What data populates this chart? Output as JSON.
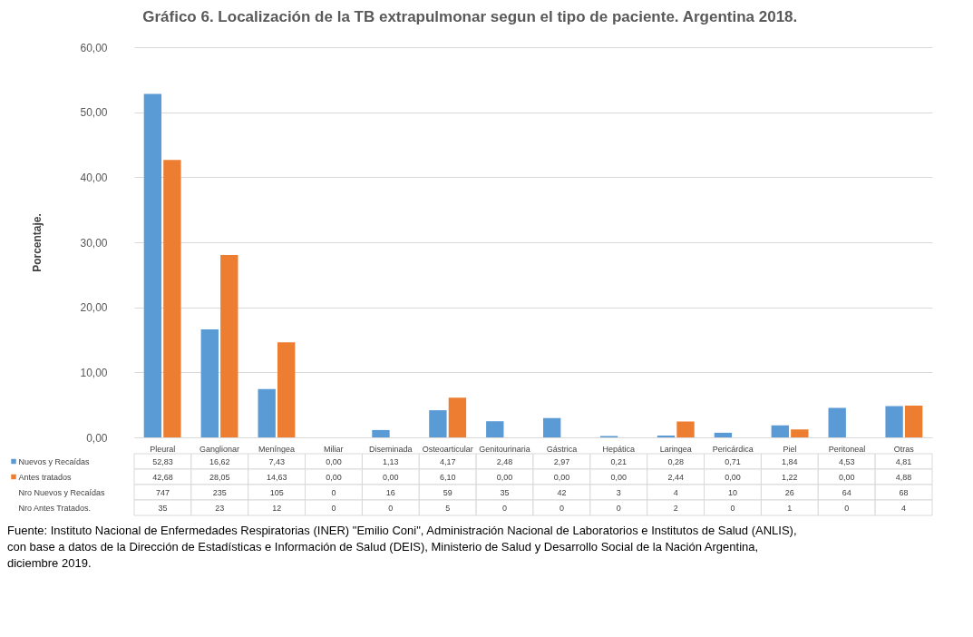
{
  "chart_data": {
    "type": "bar",
    "title": "Gráfico 6. Localización de la TB extrapulmonar segun el tipo de paciente. Argentina 2018.",
    "ylabel": "Porcentaje.",
    "categories": [
      "Pleural",
      "Ganglionar",
      "Meníngea",
      "Miliar",
      "Diseminada",
      "Osteoarticular",
      "Genitourinaria",
      "Gástrica",
      "Hepática",
      "Laringea",
      "Pericárdica",
      "Piel",
      "Peritoneal",
      "Otras"
    ],
    "series": [
      {
        "name": "Nuevos y Recaídas",
        "color": "#5b9bd5",
        "values": [
          52.83,
          16.62,
          7.43,
          0.0,
          1.13,
          4.17,
          2.48,
          2.97,
          0.21,
          0.28,
          0.71,
          1.84,
          4.53,
          4.81
        ],
        "value_labels": [
          "52,83",
          "16,62",
          "7,43",
          "0,00",
          "1,13",
          "4,17",
          "2,48",
          "2,97",
          "0,21",
          "0,28",
          "0,71",
          "1,84",
          "4,53",
          "4,81"
        ]
      },
      {
        "name": "Antes tratados",
        "color": "#ed7d31",
        "values": [
          42.68,
          28.05,
          14.63,
          0.0,
          0.0,
          6.1,
          0.0,
          0.0,
          0.0,
          2.44,
          0.0,
          1.22,
          0.0,
          4.88
        ],
        "value_labels": [
          "42,68",
          "28,05",
          "14,63",
          "0,00",
          "0,00",
          "6,10",
          "0,00",
          "0,00",
          "0,00",
          "2,44",
          "0,00",
          "1,22",
          "0,00",
          "4,88"
        ]
      }
    ],
    "ylim": [
      0,
      60
    ],
    "yticks": [
      {
        "value": 0,
        "label": "0,00"
      },
      {
        "value": 10,
        "label": "10,00"
      },
      {
        "value": 20,
        "label": "20,00"
      },
      {
        "value": 30,
        "label": "30,00"
      },
      {
        "value": 40,
        "label": "40,00"
      },
      {
        "value": 50,
        "label": "50,00"
      },
      {
        "value": 60,
        "label": "60,00"
      }
    ],
    "grid": "y",
    "legend": "bottom left",
    "annotations": [
      "Nro Nuevos y Recaídas",
      "747",
      "235",
      "105",
      "0",
      "16",
      "59",
      "35",
      "42",
      "3",
      "4",
      "10",
      "26",
      "64",
      "68",
      "Nro Antes Tratados.",
      "35",
      "23",
      "12",
      "0",
      "0",
      "5",
      "0",
      "0",
      "0",
      "2",
      "0",
      "1",
      "0",
      "4",
      "Fuente: Instituto Nacional de Enfermedades Respiratorias (INER) \"Emilio Coni\", Administración Nacional de Laboratorios e Institutos de Salud (ANLIS), con base a datos de la Dirección de Estadísticas e Información de Salud (DEIS), Ministerio de Salud  y Desarrollo Social de la Nación Argentina,  diciembre 2019."
    ]
  }
}
